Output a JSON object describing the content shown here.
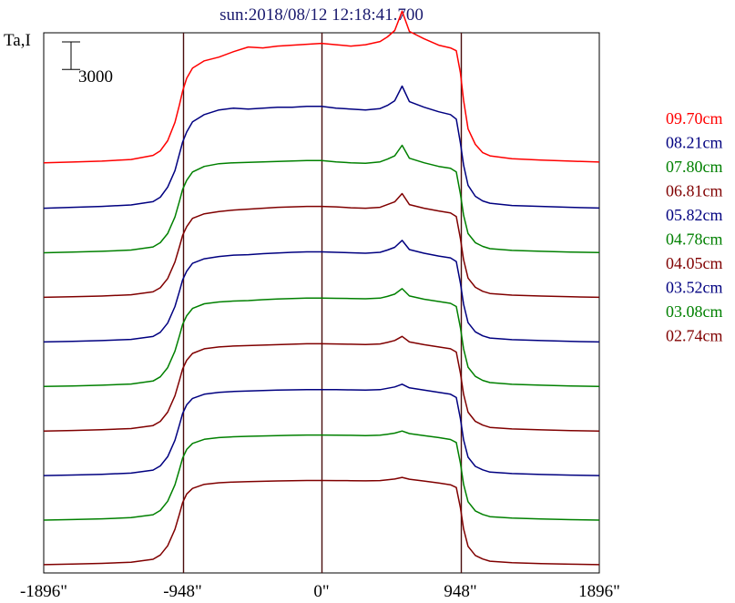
{
  "colors": {
    "background": "#ffffff",
    "frame": "#000000",
    "guide_line": "#4a0e0e"
  },
  "chart_data": {
    "type": "line",
    "title": "sun:2018/08/12 12:18:41.700",
    "ylabel": "Ta,I",
    "xlim": [
      -1896,
      1896
    ],
    "xticks": [
      {
        "value": -1896,
        "label": "-1896\""
      },
      {
        "value": -948,
        "label": "-948\""
      },
      {
        "value": 0,
        "label": "0\""
      },
      {
        "value": 948,
        "label": "948\""
      },
      {
        "value": 1896,
        "label": "1896\""
      }
    ],
    "vertical_lines": [
      -948,
      0,
      948
    ],
    "grid": false,
    "legend_position": "right",
    "scale_bar": {
      "value": 3000,
      "label": "3000"
    },
    "ylim": [
      -800,
      58000
    ],
    "series_offset": 4850,
    "x": [
      -1896,
      -1700,
      -1500,
      -1300,
      -1150,
      -1100,
      -1050,
      -1000,
      -970,
      -948,
      -920,
      -880,
      -800,
      -700,
      -600,
      -500,
      -400,
      -300,
      -200,
      -100,
      0,
      100,
      200,
      300,
      400,
      450,
      500,
      550,
      600,
      700,
      800,
      880,
      920,
      948,
      970,
      1000,
      1050,
      1100,
      1150,
      1300,
      1500,
      1700,
      1896
    ],
    "series": [
      {
        "name": "09.70cm",
        "color": "#ff0000",
        "offset": 9,
        "values": [
          200,
          280,
          380,
          560,
          1000,
          1500,
          2600,
          4600,
          6500,
          8000,
          9400,
          10500,
          11300,
          11700,
          12300,
          12800,
          12700,
          12900,
          13000,
          13100,
          13200,
          13050,
          12900,
          13050,
          13400,
          13900,
          14600,
          16700,
          14500,
          13700,
          13000,
          12700,
          12400,
          10000,
          7000,
          3900,
          2200,
          1300,
          950,
          650,
          500,
          380,
          280
        ]
      },
      {
        "name": "08.21cm",
        "color": "#000080",
        "offset": 8,
        "values": [
          100,
          200,
          300,
          460,
          820,
          1300,
          2400,
          4200,
          6000,
          7300,
          8400,
          9500,
          10300,
          10800,
          11000,
          10900,
          11000,
          11100,
          11100,
          11200,
          11200,
          11000,
          10900,
          10800,
          10950,
          11300,
          11800,
          13400,
          11700,
          11100,
          10600,
          10300,
          9800,
          7200,
          4800,
          2600,
          1400,
          900,
          650,
          400,
          300,
          200,
          120
        ]
      },
      {
        "name": "07.80cm",
        "color": "#008000",
        "offset": 7,
        "values": [
          100,
          170,
          260,
          400,
          740,
          1200,
          2200,
          4000,
          5700,
          7000,
          8000,
          8900,
          9500,
          9800,
          9900,
          9950,
          10000,
          10050,
          10100,
          10150,
          10150,
          10000,
          9900,
          9850,
          10000,
          10300,
          10650,
          11800,
          10400,
          9900,
          9500,
          9300,
          8900,
          6500,
          4200,
          2200,
          1200,
          800,
          550,
          360,
          260,
          180,
          120
        ]
      },
      {
        "name": "06.81cm",
        "color": "#800000",
        "offset": 6,
        "values": [
          100,
          160,
          240,
          380,
          700,
          1150,
          2150,
          3950,
          5600,
          6850,
          7800,
          8700,
          9200,
          9450,
          9600,
          9700,
          9800,
          9900,
          9950,
          10000,
          10000,
          9950,
          9850,
          9800,
          9900,
          10200,
          10500,
          11400,
          10200,
          9800,
          9500,
          9300,
          8900,
          6500,
          4200,
          2200,
          1200,
          760,
          520,
          340,
          240,
          160,
          100
        ]
      },
      {
        "name": "05.82cm",
        "color": "#000080",
        "offset": 5,
        "values": [
          100,
          160,
          240,
          370,
          690,
          1150,
          2150,
          3950,
          5600,
          6850,
          7800,
          8650,
          9150,
          9400,
          9550,
          9600,
          9700,
          9780,
          9850,
          9900,
          9900,
          9850,
          9800,
          9750,
          9850,
          10100,
          10400,
          11150,
          10150,
          9750,
          9450,
          9250,
          8850,
          6500,
          4200,
          2200,
          1200,
          760,
          520,
          340,
          240,
          160,
          100
        ]
      },
      {
        "name": "04.78cm",
        "color": "#008000",
        "offset": 4,
        "values": [
          100,
          160,
          240,
          370,
          690,
          1150,
          2150,
          3950,
          5600,
          6850,
          7800,
          8600,
          9100,
          9300,
          9400,
          9450,
          9550,
          9620,
          9680,
          9720,
          9720,
          9700,
          9680,
          9650,
          9720,
          9900,
          10150,
          10750,
          9950,
          9600,
          9350,
          9150,
          8800,
          6500,
          4200,
          2200,
          1200,
          760,
          520,
          340,
          240,
          160,
          100
        ]
      },
      {
        "name": "04.05cm",
        "color": "#800000",
        "offset": 3,
        "values": [
          100,
          160,
          240,
          370,
          690,
          1150,
          2150,
          3950,
          5600,
          6850,
          7800,
          8550,
          9050,
          9250,
          9350,
          9400,
          9450,
          9500,
          9550,
          9600,
          9600,
          9580,
          9550,
          9520,
          9580,
          9750,
          9950,
          10400,
          9800,
          9500,
          9250,
          9050,
          8700,
          6400,
          4100,
          2150,
          1150,
          740,
          500,
          330,
          230,
          150,
          100
        ]
      },
      {
        "name": "03.52cm",
        "color": "#000080",
        "offset": 2,
        "values": [
          100,
          160,
          240,
          370,
          690,
          1150,
          2150,
          3950,
          5600,
          6850,
          7800,
          8500,
          8950,
          9150,
          9250,
          9300,
          9350,
          9400,
          9430,
          9460,
          9460,
          9450,
          9430,
          9400,
          9450,
          9600,
          9750,
          10050,
          9650,
          9400,
          9150,
          8950,
          8600,
          6300,
          4000,
          2100,
          1100,
          720,
          480,
          320,
          220,
          150,
          100
        ]
      },
      {
        "name": "03.08cm",
        "color": "#008000",
        "offset": 1,
        "values": [
          100,
          160,
          240,
          370,
          690,
          1150,
          2150,
          3950,
          5600,
          6850,
          7800,
          8450,
          8900,
          9080,
          9170,
          9220,
          9260,
          9300,
          9330,
          9360,
          9360,
          9350,
          9330,
          9300,
          9340,
          9450,
          9570,
          9800,
          9520,
          9300,
          9080,
          8880,
          8550,
          6300,
          4000,
          2100,
          1100,
          720,
          480,
          320,
          220,
          150,
          100
        ]
      },
      {
        "name": "02.74cm",
        "color": "#800000",
        "offset": 0,
        "values": [
          100,
          160,
          240,
          370,
          690,
          1150,
          2150,
          3950,
          5600,
          6850,
          7800,
          8400,
          8850,
          9020,
          9100,
          9150,
          9180,
          9210,
          9240,
          9260,
          9260,
          9250,
          9240,
          9220,
          9250,
          9330,
          9420,
          9600,
          9400,
          9200,
          9000,
          8800,
          8500,
          6300,
          4000,
          2100,
          1100,
          720,
          480,
          320,
          220,
          150,
          100
        ]
      }
    ]
  }
}
